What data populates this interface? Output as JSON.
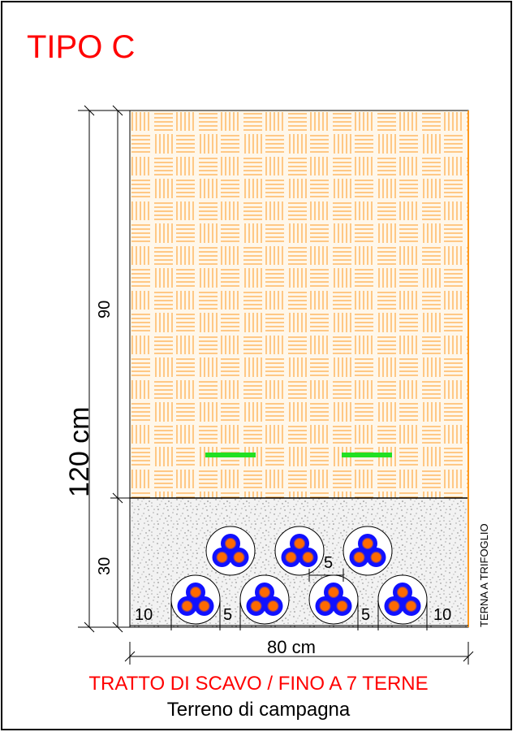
{
  "title": "TIPO C",
  "caption_red": "TRATTO DI SCAVO / FINO A 7 TERNE",
  "caption_black": "Terreno di campagna",
  "dims": {
    "total_depth": "120 cm",
    "upper_depth": "90",
    "lower_depth": "30",
    "width": "80 cm",
    "left_margin": "10",
    "right_margin": "10",
    "gap_left": "5",
    "gap_right": "5",
    "gap_top": "5"
  },
  "side_label": "TERNA A TRIFOGLIO",
  "colors": {
    "title": "#ff0000",
    "fill_hatch": "#ff8c00",
    "tape": "#22e022",
    "cable": "#1010ff",
    "cable_core": "#ff6a00"
  },
  "icons": {
    "cable_trefoil": "trefoil-cable-icon"
  }
}
